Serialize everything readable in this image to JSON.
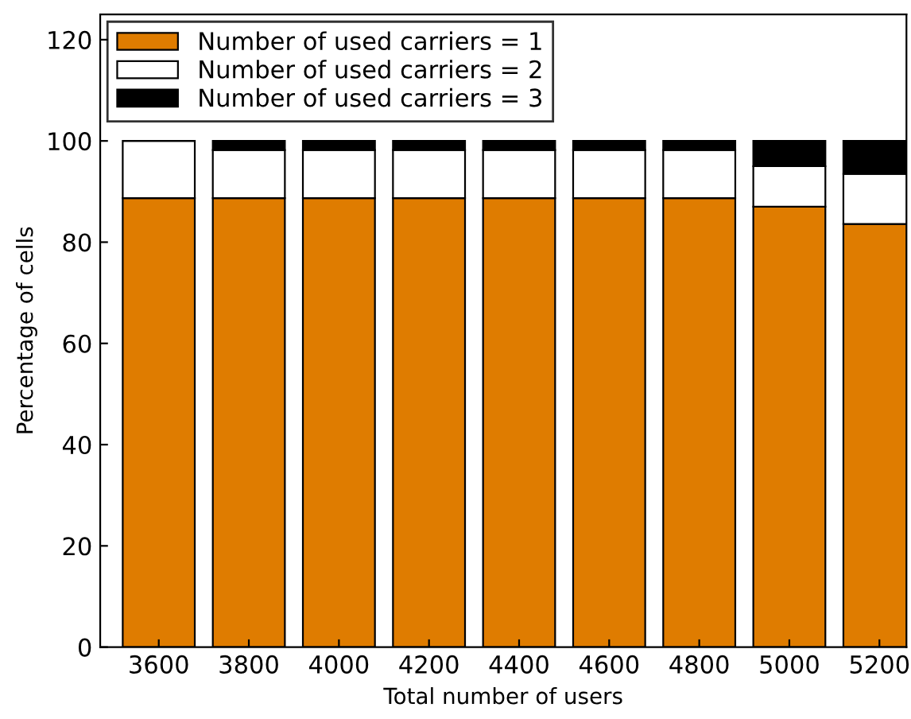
{
  "chart_data": {
    "type": "bar",
    "stacked": true,
    "xlabel": "Total number of users",
    "ylabel": "Percentage of cells",
    "x": [
      3600,
      3800,
      4000,
      4200,
      4400,
      4600,
      4800,
      5000,
      5200
    ],
    "series": [
      {
        "name": "Number of used carriers = 1",
        "color": "#df7c00",
        "values": [
          88.7,
          88.7,
          88.7,
          88.7,
          88.7,
          88.7,
          88.7,
          87,
          83.6
        ]
      },
      {
        "name": "Number of used carriers = 2",
        "color": "#ffffff",
        "values": [
          11.3,
          9.5,
          9.5,
          9.5,
          9.5,
          9.5,
          9.5,
          8,
          9.9
        ]
      },
      {
        "name": "Number of used carriers = 3",
        "color": "#000000",
        "values": [
          0,
          1.8,
          1.8,
          1.8,
          1.8,
          1.8,
          1.8,
          5,
          6.5
        ]
      }
    ],
    "xlim": [
      3470,
      5260
    ],
    "xticks": [
      3600,
      3800,
      4000,
      4200,
      4400,
      4600,
      4800,
      5000,
      5200
    ],
    "ylim": [
      0,
      125
    ],
    "yticks": [
      0,
      20,
      40,
      60,
      80,
      100,
      120
    ],
    "grid": false,
    "legend": "top left"
  }
}
